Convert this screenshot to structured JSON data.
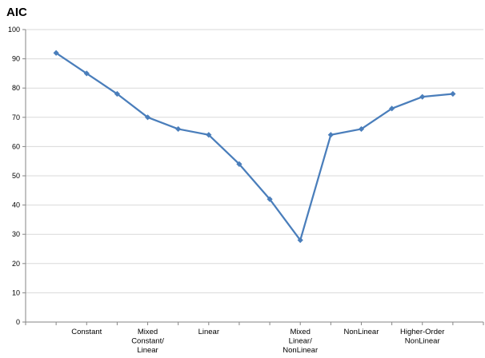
{
  "chart_data": {
    "type": "line",
    "title": "AIC",
    "xlabel": "",
    "ylabel": "",
    "ylim": [
      0,
      100
    ],
    "yticks": [
      0,
      10,
      20,
      30,
      40,
      50,
      60,
      70,
      80,
      90,
      100
    ],
    "grid": true,
    "legend": "none",
    "category_labels": [
      {
        "lines": [
          "Constant"
        ],
        "at": 2
      },
      {
        "lines": [
          "Mixed",
          "Constant/",
          "Linear"
        ],
        "at": 4
      },
      {
        "lines": [
          "Linear"
        ],
        "at": 6
      },
      {
        "lines": [
          "Mixed",
          "Linear/",
          "NonLinear"
        ],
        "at": 9
      },
      {
        "lines": [
          "NonLinear"
        ],
        "at": 11
      },
      {
        "lines": [
          "Higher-Order",
          "NonLinear"
        ],
        "at": 13
      }
    ],
    "series": [
      {
        "color": "#4a7ebb",
        "x": [
          1,
          2,
          3,
          4,
          5,
          6,
          7,
          8,
          9,
          10,
          11,
          12,
          13,
          14
        ],
        "values": [
          92,
          85,
          78,
          70,
          66,
          64,
          54,
          42,
          28,
          64,
          66,
          73,
          77,
          78
        ]
      }
    ]
  }
}
